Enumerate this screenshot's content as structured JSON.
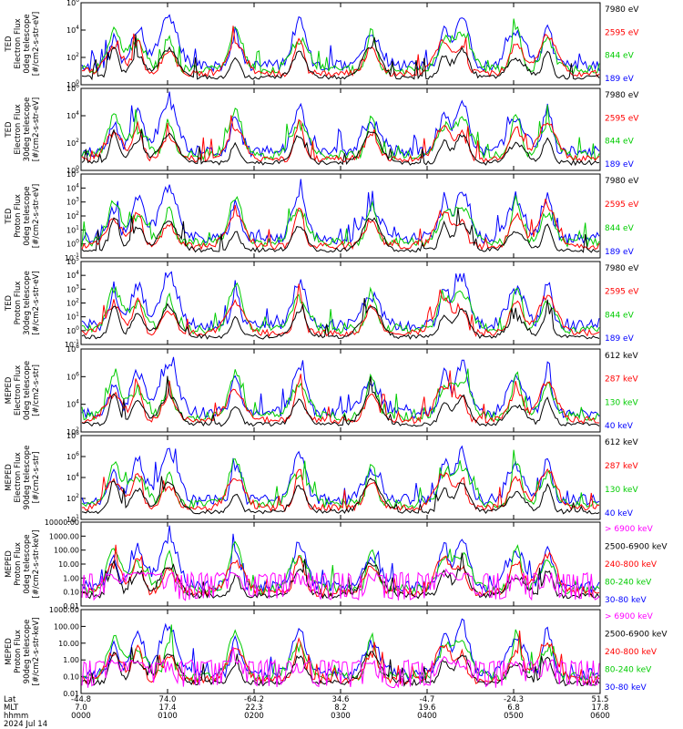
{
  "chart_data": {
    "type": "line",
    "date": "2024 Jul 14",
    "x_axis": {
      "rows": [
        {
          "label": "Lat",
          "values": [
            "-44.8",
            "74.0",
            "-64.2",
            "34.6",
            "-4.7",
            "-24.3",
            "51.5"
          ]
        },
        {
          "label": "MLT",
          "values": [
            "7.0",
            "17.4",
            "22.3",
            "8.2",
            "19.6",
            "6.8",
            "17.8"
          ]
        },
        {
          "label": "hhmm",
          "values": [
            "0000",
            "0100",
            "0200",
            "0300",
            "0400",
            "0500",
            "0600"
          ]
        }
      ],
      "time_range_hours": [
        0,
        6
      ]
    },
    "panels": [
      {
        "ylabel": [
          "TED",
          "Electron Flux",
          "0deg telescope",
          "[#/cm2-s-str-eV]"
        ],
        "yscale": "log",
        "ylim_exp": [
          0,
          6
        ],
        "tick_labels": [
          "10^0",
          "10^2",
          "10^4",
          "10^6"
        ],
        "legend": [
          {
            "text": "7980 eV",
            "color": "#000000"
          },
          {
            "text": "2595 eV",
            "color": "#ff0000"
          },
          {
            "text": "844 eV",
            "color": "#00cc00"
          },
          {
            "text": "189 eV",
            "color": "#0000ff"
          }
        ]
      },
      {
        "ylabel": [
          "TED",
          "Electron Flux",
          "30deg telescope",
          "[#/cm2-s-str-eV]"
        ],
        "yscale": "log",
        "ylim_exp": [
          0,
          6
        ],
        "tick_labels": [
          "10^0",
          "10^2",
          "10^4",
          "10^6"
        ],
        "legend": [
          {
            "text": "7980 eV",
            "color": "#000000"
          },
          {
            "text": "2595 eV",
            "color": "#ff0000"
          },
          {
            "text": "844 eV",
            "color": "#00cc00"
          },
          {
            "text": "189 eV",
            "color": "#0000ff"
          }
        ]
      },
      {
        "ylabel": [
          "TED",
          "Proton Flux",
          "0deg telescope",
          "[#/cm2-s-str-eV]"
        ],
        "yscale": "log",
        "ylim_exp": [
          -1,
          5
        ],
        "tick_labels": [
          "10^-1",
          "10^0",
          "10^1",
          "10^2",
          "10^3",
          "10^4",
          "10^5"
        ],
        "legend": [
          {
            "text": "7980 eV",
            "color": "#000000"
          },
          {
            "text": "2595 eV",
            "color": "#ff0000"
          },
          {
            "text": "844 eV",
            "color": "#00cc00"
          },
          {
            "text": "189 eV",
            "color": "#0000ff"
          }
        ]
      },
      {
        "ylabel": [
          "TED",
          "Proton Flux",
          "30deg telescope",
          "[#/cm2-s-str-eV]"
        ],
        "yscale": "log",
        "ylim_exp": [
          -1,
          5
        ],
        "tick_labels": [
          "10^-1",
          "10^0",
          "10^1",
          "10^2",
          "10^3",
          "10^4",
          "10^5"
        ],
        "legend": [
          {
            "text": "7980 eV",
            "color": "#000000"
          },
          {
            "text": "2595 eV",
            "color": "#ff0000"
          },
          {
            "text": "844 eV",
            "color": "#00cc00"
          },
          {
            "text": "189 eV",
            "color": "#0000ff"
          }
        ]
      },
      {
        "ylabel": [
          "MEPED",
          "Electron Flux",
          "0deg telescope",
          "[#/cm2-s-str]"
        ],
        "yscale": "log",
        "ylim_exp": [
          1,
          8
        ],
        "tick_labels": [
          "10^2",
          "10^4",
          "10^6",
          "10^8"
        ],
        "legend": [
          {
            "text": "612 keV",
            "color": "#000000"
          },
          {
            "text": "287 keV",
            "color": "#ff0000"
          },
          {
            "text": "130 keV",
            "color": "#00cc00"
          },
          {
            "text": "40 keV",
            "color": "#0000ff"
          }
        ]
      },
      {
        "ylabel": [
          "MEPED",
          "Electron Flux",
          "90deg telescope",
          "[#/cm2-s-str]"
        ],
        "yscale": "log",
        "ylim_exp": [
          1,
          8
        ],
        "tick_labels": [
          "10^1",
          "10^2",
          "10^4",
          "10^6",
          "10^8"
        ],
        "legend": [
          {
            "text": "612 keV",
            "color": "#000000"
          },
          {
            "text": "287 keV",
            "color": "#ff0000"
          },
          {
            "text": "130 keV",
            "color": "#00cc00"
          },
          {
            "text": "40 keV",
            "color": "#0000ff"
          }
        ]
      },
      {
        "ylabel": [
          "MEPED",
          "Proton Flux",
          "0deg telescope",
          "[#/cm2-s-str-keV]"
        ],
        "yscale": "log",
        "ylim_exp": [
          -2,
          4
        ],
        "tick_labels": [
          "0.01",
          "0.10",
          "1.00",
          "10.00",
          "100.00",
          "1000.00",
          "10000.00"
        ],
        "legend": [
          {
            "text": "> 6900 keV",
            "color": "#ff00ff"
          },
          {
            "text": "2500-6900 keV",
            "color": "#000000"
          },
          {
            "text": "240-800 keV",
            "color": "#ff0000"
          },
          {
            "text": "80-240 keV",
            "color": "#00cc00"
          },
          {
            "text": "30-80 keV",
            "color": "#0000ff"
          }
        ]
      },
      {
        "ylabel": [
          "MEPED",
          "Proton Flux",
          "90deg telescope",
          "[#/cm2-s-str-keV]"
        ],
        "yscale": "log",
        "ylim_exp": [
          -2,
          4
        ],
        "tick_labels": [
          "0.01",
          "0.10",
          "1.00",
          "10.00",
          "100.00",
          "1000.00"
        ],
        "legend": [
          {
            "text": "> 6900 keV",
            "color": "#ff00ff"
          },
          {
            "text": "2500-6900 keV",
            "color": "#000000"
          },
          {
            "text": "240-800 keV",
            "color": "#ff0000"
          },
          {
            "text": "80-240 keV",
            "color": "#00cc00"
          },
          {
            "text": "30-80 keV",
            "color": "#0000ff"
          }
        ]
      }
    ]
  }
}
